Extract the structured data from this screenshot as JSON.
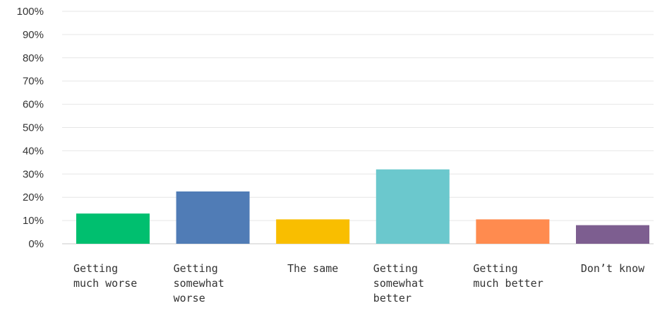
{
  "chart_data": {
    "type": "bar",
    "categories": [
      [
        "Getting",
        "much worse"
      ],
      [
        "Getting",
        "somewhat",
        "worse"
      ],
      [
        "The same"
      ],
      [
        "Getting",
        "somewhat",
        "better"
      ],
      [
        "Getting",
        "much better"
      ],
      [
        "Don’t know"
      ]
    ],
    "values": [
      13,
      22.5,
      10.5,
      32,
      10.5,
      8
    ],
    "colors": [
      "#00bf6f",
      "#507cb6",
      "#f9be00",
      "#6bc8cd",
      "#ff8b4f",
      "#7d5e90"
    ],
    "yticks": [
      "0%",
      "10%",
      "20%",
      "30%",
      "40%",
      "50%",
      "60%",
      "70%",
      "80%",
      "90%",
      "100%"
    ],
    "ylim": [
      0,
      100
    ],
    "grid": true,
    "title": "",
    "xlabel": "",
    "ylabel": ""
  }
}
